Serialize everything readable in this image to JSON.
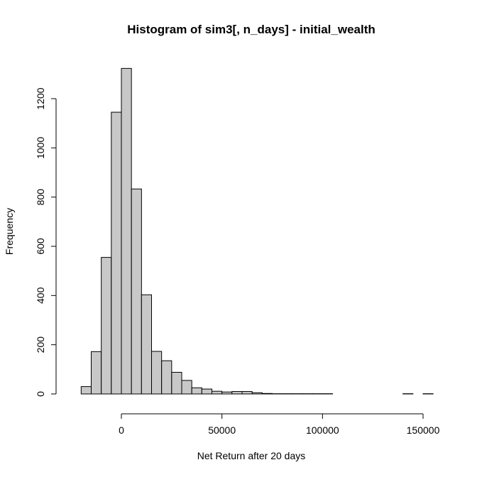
{
  "chart_data": {
    "type": "bar",
    "title": "Histogram of sim3[, n_days] - initial_wealth",
    "xlabel": "Net Return after 20 days",
    "ylabel": "Frequency",
    "bin_width": 5000,
    "bin_starts": [
      -20000,
      -15000,
      -10000,
      -5000,
      0,
      5000,
      10000,
      15000,
      20000,
      25000,
      30000,
      35000,
      40000,
      45000,
      50000,
      55000,
      60000,
      65000,
      70000,
      75000,
      80000,
      85000,
      90000,
      95000,
      100000,
      105000,
      110000,
      115000,
      120000,
      125000,
      130000,
      135000,
      140000,
      145000,
      150000
    ],
    "values": [
      30,
      172,
      555,
      1145,
      1323,
      833,
      403,
      173,
      135,
      88,
      55,
      25,
      20,
      11,
      8,
      10,
      10,
      5,
      2,
      1,
      1,
      1,
      1,
      1,
      1,
      0,
      0,
      0,
      0,
      0,
      0,
      0,
      1,
      0,
      1
    ],
    "xlim": [
      -25000,
      155000
    ],
    "ylim": [
      0,
      1350
    ],
    "x_ticks": [
      0,
      50000,
      100000,
      150000
    ],
    "x_tick_labels": [
      "0",
      "50000",
      "100000",
      "150000"
    ],
    "y_ticks": [
      0,
      200,
      400,
      600,
      800,
      1000,
      1200
    ],
    "y_tick_labels": [
      "0",
      "200",
      "400",
      "600",
      "800",
      "1000",
      "1200"
    ],
    "grid": false,
    "colors": {
      "bar_fill": "#c8c8c8",
      "bar_stroke": "#000000"
    }
  }
}
